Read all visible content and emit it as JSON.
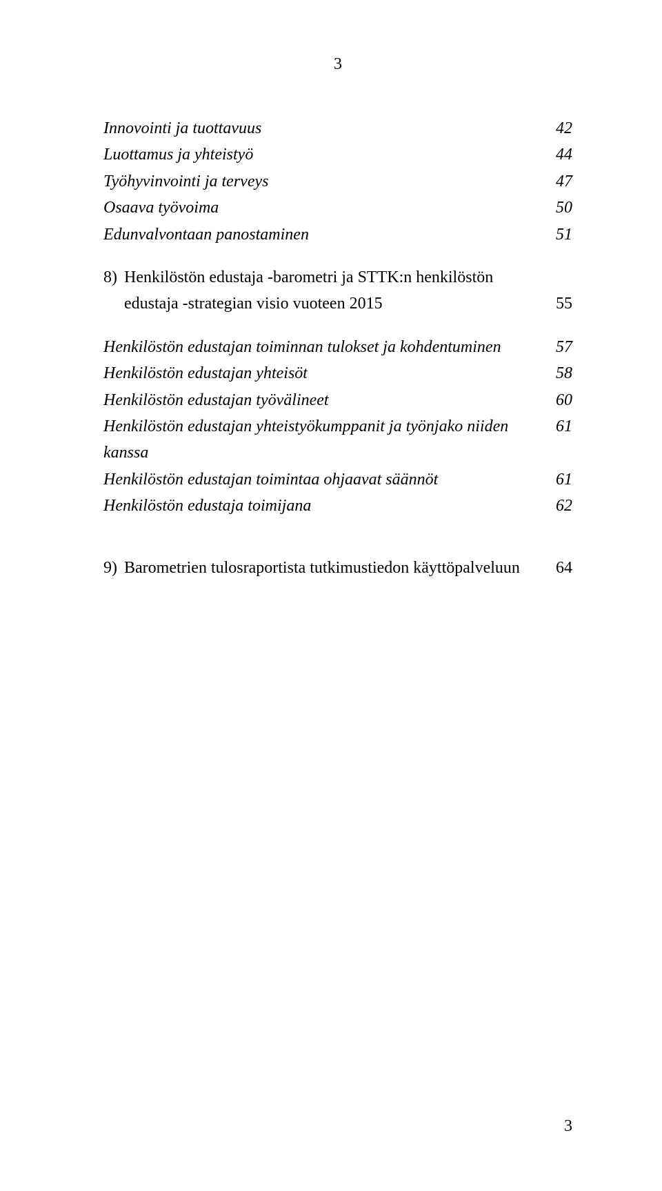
{
  "page": {
    "top_number": "3",
    "bottom_number": "3"
  },
  "toc": {
    "prelude_items": [
      {
        "label": "Innovointi ja tuottavuus",
        "page": "42"
      },
      {
        "label": "Luottamus ja yhteistyö",
        "page": "44"
      },
      {
        "label": "Työhyvinvointi ja terveys",
        "page": "47"
      },
      {
        "label": "Osaava työvoima",
        "page": "50"
      },
      {
        "label": "Edunvalvontaan panostaminen",
        "page": "51"
      }
    ],
    "section8": {
      "number": "8)",
      "title_line1": "Henkilöstön edustaja -barometri ja STTK:n henkilöstön",
      "title_line2": "edustaja -strategian visio vuoteen 2015",
      "page": "55",
      "items": [
        {
          "label": "Henkilöstön edustajan toiminnan tulokset ja kohdentuminen",
          "page": "57"
        },
        {
          "label": "Henkilöstön edustajan yhteisöt",
          "page": "58"
        },
        {
          "label": "Henkilöstön edustajan työvälineet",
          "page": "60"
        },
        {
          "label": "Henkilöstön edustajan yhteistyökumppanit ja työnjako niiden kanssa",
          "page": "61"
        },
        {
          "label": "Henkilöstön edustajan toimintaa ohjaavat säännöt",
          "page": "61"
        },
        {
          "label": "Henkilöstön edustaja toimijana",
          "page": "62"
        }
      ]
    },
    "section9": {
      "number": "9)",
      "title": "Barometrien tulosraportista tutkimustiedon käyttöpalveluun",
      "page": "64"
    }
  },
  "style": {
    "font_family": "Times New Roman",
    "font_size_pt": 18,
    "text_color": "#000000",
    "background_color": "#ffffff"
  }
}
